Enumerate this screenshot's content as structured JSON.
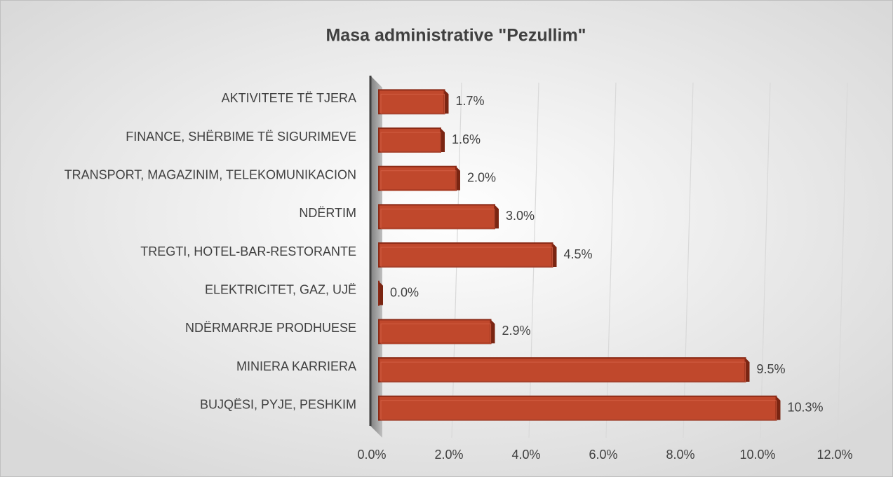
{
  "chart_data": {
    "type": "bar",
    "orientation": "horizontal",
    "title": "Masa administrative \"Pezullim\"",
    "categories": [
      "AKTIVITETE TË TJERA",
      "FINANCE, SHËRBIME TË SIGURIMEVE",
      "TRANSPORT, MAGAZINIM, TELEKOMUNIKACION",
      "NDËRTIM",
      "TREGTI, HOTEL-BAR-RESTORANTE",
      "ELEKTRICITET, GAZ, UJË",
      "NDËRMARRJE PRODHUESE",
      "MINIERA KARRIERA",
      "BUJQËSI, PYJE, PESHKIM"
    ],
    "values": [
      1.7,
      1.6,
      2.0,
      3.0,
      4.5,
      0.0,
      2.9,
      9.5,
      10.3
    ],
    "value_labels": [
      "1.7%",
      "1.6%",
      "2.0%",
      "3.0%",
      "4.5%",
      "0.0%",
      "2.9%",
      "9.5%",
      "10.3%"
    ],
    "color": "#c0482c",
    "xlim": [
      0,
      12
    ],
    "xticks": [
      {
        "value": 0,
        "label": "0.0%"
      },
      {
        "value": 2,
        "label": "2.0%"
      },
      {
        "value": 4,
        "label": "4.0%"
      },
      {
        "value": 6,
        "label": "6.0%"
      },
      {
        "value": 8,
        "label": "8.0%"
      },
      {
        "value": 10,
        "label": "10.0%"
      },
      {
        "value": 12,
        "label": "12.0%"
      }
    ],
    "grid": true
  }
}
